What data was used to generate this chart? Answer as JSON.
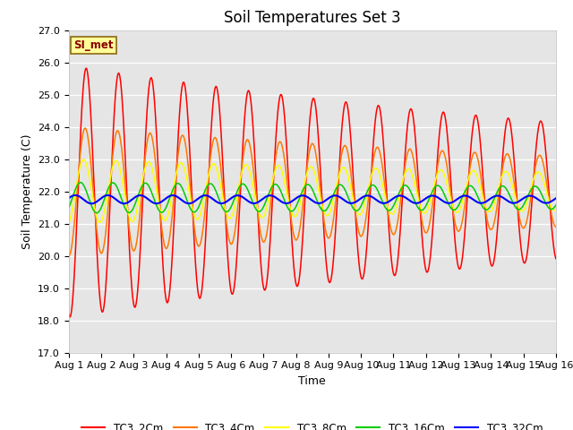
{
  "title": "Soil Temperatures Set 3",
  "xlabel": "Time",
  "ylabel": "Soil Temperature (C)",
  "xlim": [
    0,
    15
  ],
  "ylim": [
    17.0,
    27.0
  ],
  "yticks": [
    17.0,
    18.0,
    19.0,
    20.0,
    21.0,
    22.0,
    23.0,
    24.0,
    25.0,
    26.0,
    27.0
  ],
  "xtick_labels": [
    "Aug 1",
    "Aug 2",
    "Aug 3",
    "Aug 4",
    "Aug 5",
    "Aug 6",
    "Aug 7",
    "Aug 8",
    "Aug 9",
    "Aug 10",
    "Aug 11",
    "Aug 12",
    "Aug 13",
    "Aug 14",
    "Aug 15",
    "Aug 16"
  ],
  "xtick_positions": [
    0,
    1,
    2,
    3,
    4,
    5,
    6,
    7,
    8,
    9,
    10,
    11,
    12,
    13,
    14,
    15
  ],
  "annotation_text": "SI_met",
  "series": [
    {
      "label": "TC3_2Cm",
      "color": "#ff0000",
      "lw": 1.1,
      "mean": 22.0,
      "amp": 3.9,
      "phase": -1.8,
      "period": 1.0,
      "decay": 0.04
    },
    {
      "label": "TC3_4Cm",
      "color": "#ff7700",
      "lw": 1.1,
      "mean": 22.0,
      "amp": 2.0,
      "phase": -1.6,
      "period": 1.0,
      "decay": 0.04
    },
    {
      "label": "TC3_8Cm",
      "color": "#ffff00",
      "lw": 1.1,
      "mean": 22.0,
      "amp": 1.0,
      "phase": -1.3,
      "period": 1.0,
      "decay": 0.035
    },
    {
      "label": "TC3_16Cm",
      "color": "#00cc00",
      "lw": 1.1,
      "mean": 21.8,
      "amp": 0.48,
      "phase": -0.7,
      "period": 1.0,
      "decay": 0.02
    },
    {
      "label": "TC3_32Cm",
      "color": "#0000ff",
      "lw": 1.5,
      "mean": 21.75,
      "amp": 0.13,
      "phase": 0.3,
      "period": 1.0,
      "decay": 0.01
    }
  ],
  "bg_color": "#e5e5e5",
  "grid_color": "#ffffff",
  "title_fontsize": 12,
  "label_fontsize": 9,
  "tick_fontsize": 8
}
